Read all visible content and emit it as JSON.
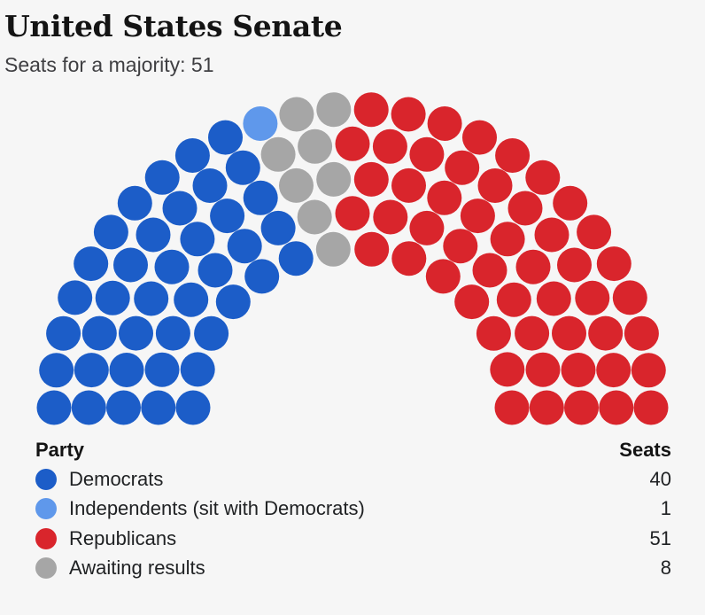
{
  "title": "United States Senate",
  "subtitle": "Seats for a majority: 51",
  "legend": {
    "party_header": "Party",
    "seats_header": "Seats"
  },
  "chart_data": {
    "type": "parliament",
    "title": "United States Senate",
    "subtitle": "Seats for a majority: 51",
    "total_seats": 100,
    "majority": 51,
    "rows": 5,
    "series": [
      {
        "name": "Democrats",
        "seats": 40,
        "color": "#1c5dc8"
      },
      {
        "name": "Independents (sit with Democrats)",
        "seats": 1,
        "color": "#5f98eb"
      },
      {
        "name": "Awaiting results",
        "seats": 8,
        "color": "#a6a6a6"
      },
      {
        "name": "Republicans",
        "seats": 51,
        "color": "#d9252c"
      }
    ]
  },
  "legend_items": [
    {
      "label": "Democrats",
      "value": "40",
      "color": "#1c5dc8"
    },
    {
      "label": "Independents (sit with Democrats)",
      "value": "1",
      "color": "#5f98eb"
    },
    {
      "label": "Republicans",
      "value": "51",
      "color": "#d9252c"
    },
    {
      "label": "Awaiting results",
      "value": "8",
      "color": "#a6a6a6"
    }
  ]
}
